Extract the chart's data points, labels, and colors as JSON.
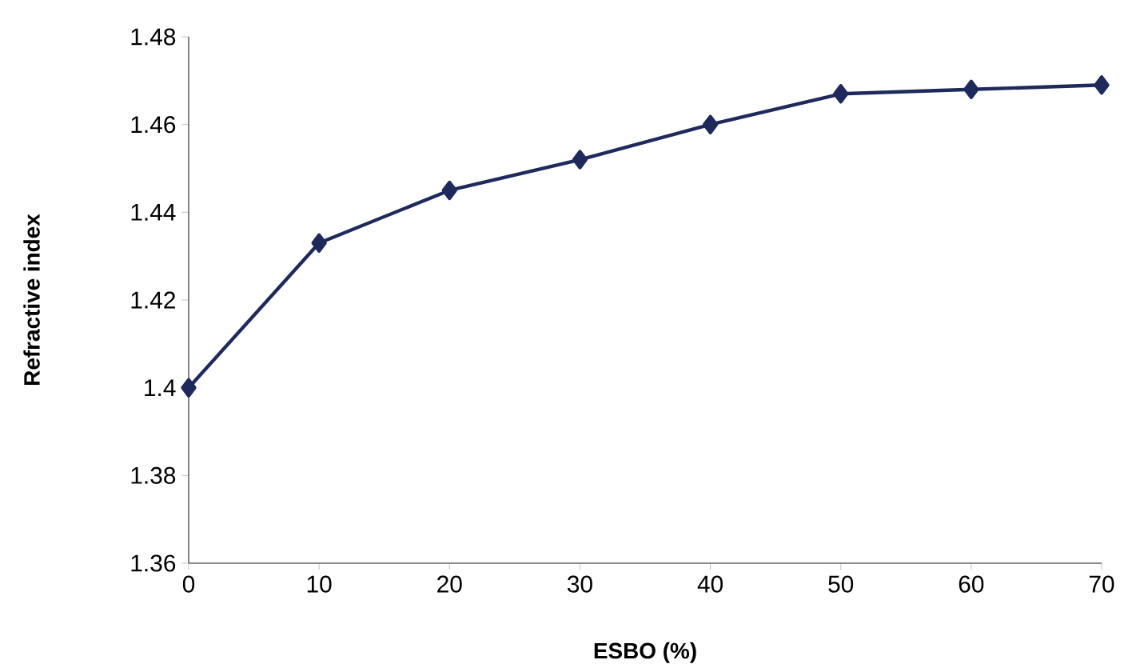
{
  "chart_data": {
    "type": "line",
    "xlabel": "ESBO (%)",
    "ylabel": "Refractive index",
    "x": [
      0,
      10,
      20,
      30,
      40,
      50,
      60,
      70
    ],
    "series": [
      {
        "color": "#1f2a5c",
        "values": [
          1.4,
          1.433,
          1.445,
          1.452,
          1.46,
          1.467,
          1.468,
          1.469
        ]
      }
    ],
    "xlim": [
      0,
      70
    ],
    "ylim": [
      1.36,
      1.48
    ],
    "xticks": [
      0,
      10,
      20,
      30,
      40,
      50,
      60,
      70
    ],
    "yticks": [
      1.36,
      1.38,
      1.4,
      1.42,
      1.44,
      1.46,
      1.48
    ],
    "marker": "diamond",
    "line_style": "solid",
    "grid": false
  }
}
